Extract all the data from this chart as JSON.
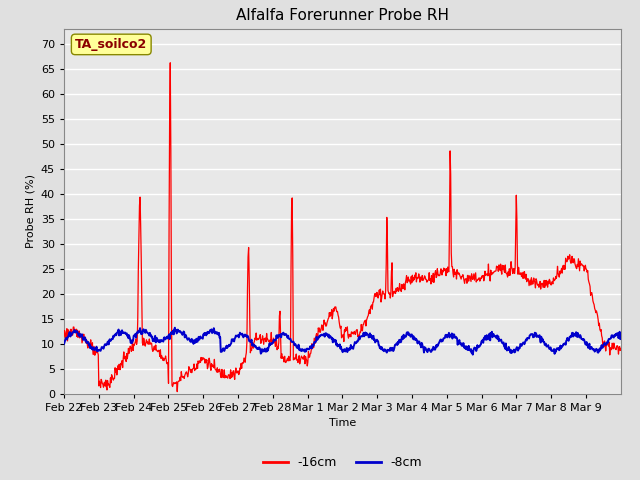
{
  "title": "Alfalfa Forerunner Probe RH",
  "xlabel": "Time",
  "ylabel": "Probe RH (%)",
  "annotation_text": "TA_soilco2",
  "annotation_color": "#8B0000",
  "annotation_bg": "#FFFF99",
  "legend_labels": [
    "-16cm",
    "-8cm"
  ],
  "legend_colors": [
    "#FF0000",
    "#0000CC"
  ],
  "ylim": [
    0,
    73
  ],
  "yticks": [
    0,
    5,
    10,
    15,
    20,
    25,
    30,
    35,
    40,
    45,
    50,
    55,
    60,
    65,
    70
  ],
  "bg_color": "#E0E0E0",
  "plot_bg": "#E8E8E8",
  "grid_color": "#FFFFFF",
  "xtick_labels": [
    "Feb 22",
    "Feb 23",
    "Feb 24",
    "Feb 25",
    "Feb 26",
    "Feb 27",
    "Feb 28",
    "Mar 1",
    "Mar 2",
    "Mar 3",
    "Mar 4",
    "Mar 5",
    "Mar 6",
    "Mar 7",
    "Mar 8",
    "Mar 9"
  ],
  "title_fontsize": 11,
  "axis_fontsize": 8,
  "tick_fontsize": 8
}
